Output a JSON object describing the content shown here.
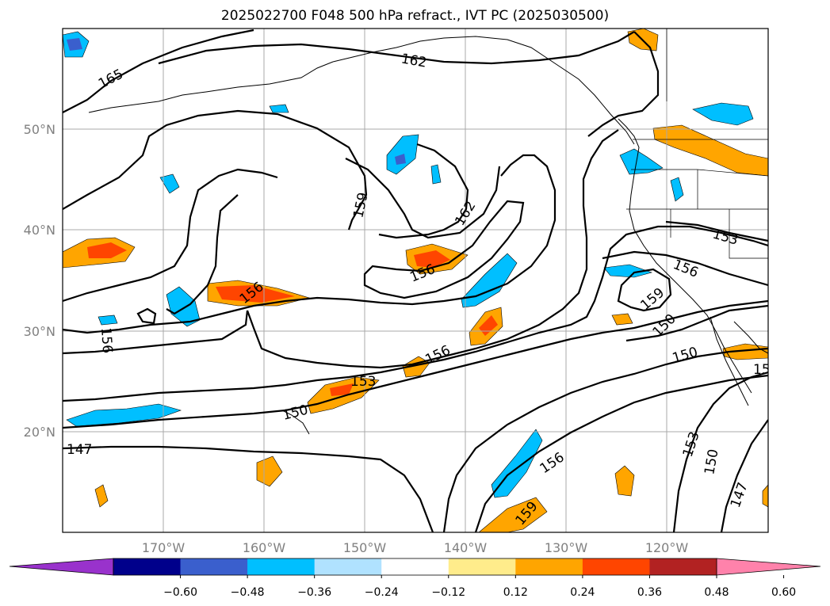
{
  "title": "2025022700 F048 500 hPa refract., IVT PC (2025030500)",
  "lat_labels": [
    "50°N",
    "40°N",
    "30°N",
    "20°N"
  ],
  "lon_labels": [
    "170°W",
    "160°W",
    "150°W",
    "140°W",
    "130°W",
    "120°W"
  ],
  "contour_labels": [
    "165",
    "162",
    "159",
    "162",
    "156",
    "156",
    "156",
    "153",
    "150",
    "156",
    "147",
    "153",
    "156",
    "159",
    "150",
    "150",
    "153",
    "150",
    "147",
    "156",
    "159",
    "15"
  ],
  "colorbar": {
    "colors": [
      "#9932cc",
      "#00008b",
      "#3a5fcd",
      "#00bfff",
      "#b0e2ff",
      "#ffffff",
      "#ffec8b",
      "#ffa500",
      "#ff4500",
      "#b22222",
      "#ff82ab"
    ],
    "tick_labels": [
      "−0.60",
      "−0.48",
      "−0.36",
      "−0.24",
      "−0.12",
      "0.12",
      "0.24",
      "0.36",
      "0.48",
      "0.60"
    ]
  }
}
